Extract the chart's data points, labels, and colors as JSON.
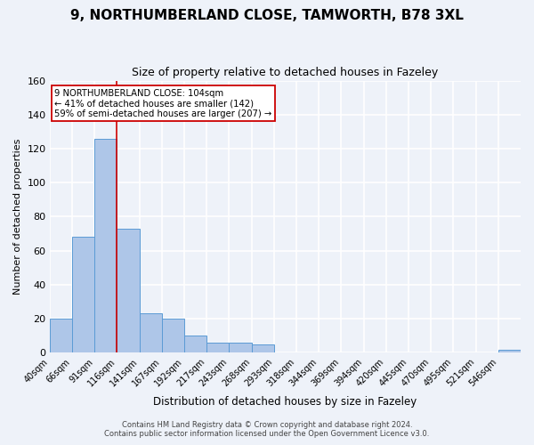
{
  "title": "9, NORTHUMBERLAND CLOSE, TAMWORTH, B78 3XL",
  "subtitle": "Size of property relative to detached houses in Fazeley",
  "xlabel": "Distribution of detached houses by size in Fazeley",
  "ylabel": "Number of detached properties",
  "footer_line1": "Contains HM Land Registry data © Crown copyright and database right 2024.",
  "footer_line2": "Contains public sector information licensed under the Open Government Licence v3.0.",
  "bin_labels": [
    "40sqm",
    "66sqm",
    "91sqm",
    "116sqm",
    "141sqm",
    "167sqm",
    "192sqm",
    "217sqm",
    "243sqm",
    "268sqm",
    "293sqm",
    "318sqm",
    "344sqm",
    "369sqm",
    "394sqm",
    "420sqm",
    "445sqm",
    "470sqm",
    "495sqm",
    "521sqm",
    "546sqm"
  ],
  "bin_values": [
    20,
    68,
    126,
    73,
    23,
    20,
    10,
    6,
    6,
    5,
    0,
    0,
    0,
    0,
    0,
    0,
    0,
    0,
    0,
    0,
    2
  ],
  "bar_color": "#aec6e8",
  "bar_edge_color": "#5b9bd5",
  "background_color": "#eef2f9",
  "grid_color": "#ffffff",
  "red_line_x": 3.0,
  "annotation_text": "9 NORTHUMBERLAND CLOSE: 104sqm\n← 41% of detached houses are smaller (142)\n59% of semi-detached houses are larger (207) →",
  "annotation_box_color": "#ffffff",
  "annotation_box_edge": "#cc0000",
  "annotation_text_color": "#000000",
  "ylim": [
    0,
    160
  ],
  "yticks": [
    0,
    20,
    40,
    60,
    80,
    100,
    120,
    140,
    160
  ]
}
